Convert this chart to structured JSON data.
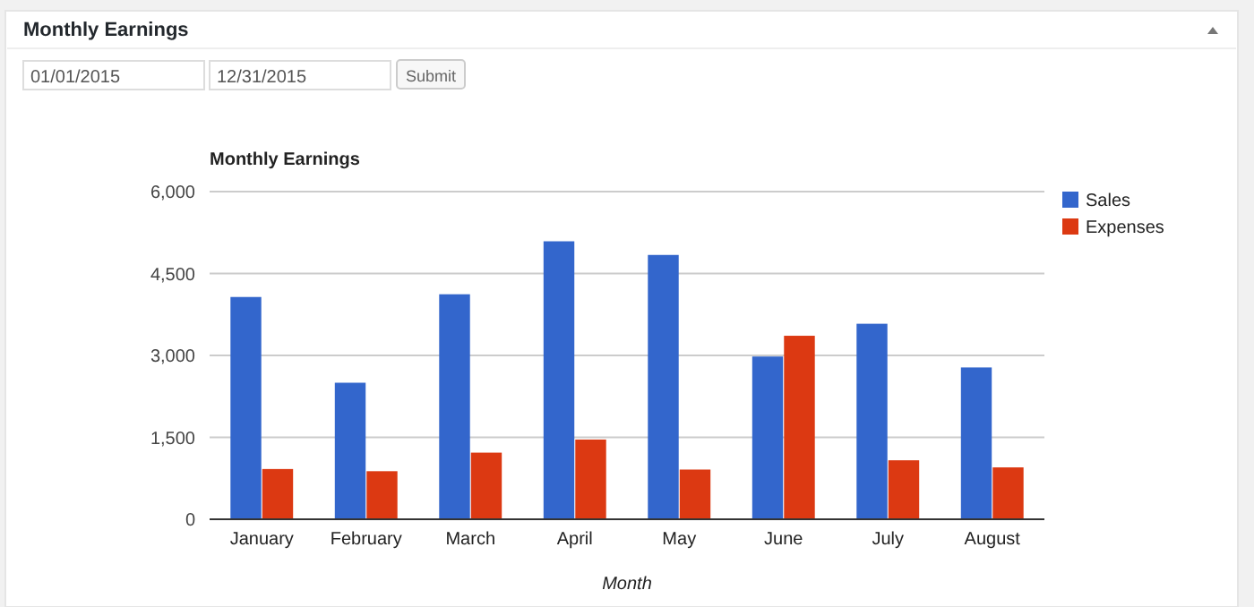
{
  "chart_data": {
    "type": "bar",
    "title": "Monthly Earnings",
    "xlabel": "Month",
    "annotations": [
      "Monthly Earnings",
      "01/01/2015",
      "12/31/2015",
      "Submit"
    ],
    "categories": [
      "January",
      "February",
      "March",
      "April",
      "May",
      "June",
      "July",
      "August"
    ],
    "series": [
      {
        "name": "Sales",
        "color": "#3366cc",
        "values": [
          4070,
          2500,
          4120,
          5090,
          4840,
          2980,
          3580,
          2780
        ]
      },
      {
        "name": "Expenses",
        "color": "#dc3912",
        "values": [
          920,
          880,
          1220,
          1460,
          910,
          3360,
          1080,
          950
        ]
      }
    ],
    "ylim": [
      0,
      6000
    ],
    "yticks": [
      0,
      {
        "value": 1500,
        "label": "1,500"
      },
      {
        "value": 3000,
        "label": "3,000"
      },
      {
        "value": 4500,
        "label": "4,500"
      },
      {
        "value": 6000,
        "label": "6,000"
      }
    ],
    "grid": true,
    "legend": "top right"
  }
}
